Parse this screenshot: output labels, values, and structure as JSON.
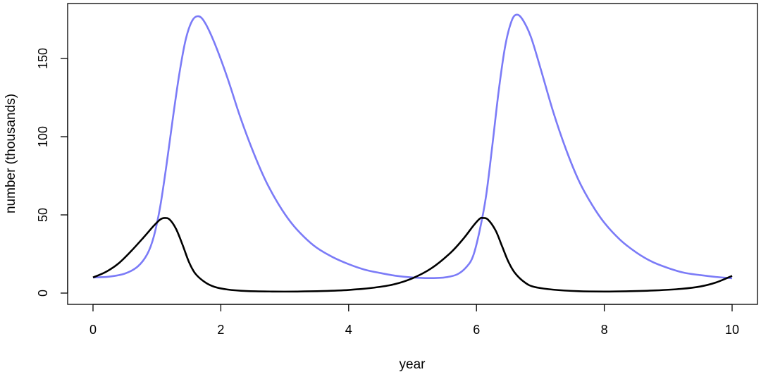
{
  "chart_data": {
    "type": "line",
    "title": "",
    "xlabel": "year",
    "ylabel": "number (thousands)",
    "xlim": [
      0,
      10
    ],
    "ylim": [
      0,
      175
    ],
    "x_ticks": [
      0,
      2,
      4,
      6,
      8,
      10
    ],
    "y_ticks": [
      0,
      50,
      100,
      150
    ],
    "grid": false,
    "legend": "none",
    "series": [
      {
        "color": "#7B7BF7",
        "points": [
          [
            0,
            10
          ],
          [
            0.25,
            10.5
          ],
          [
            0.5,
            12.5
          ],
          [
            0.7,
            17
          ],
          [
            0.85,
            25
          ],
          [
            0.95,
            36
          ],
          [
            1.05,
            55
          ],
          [
            1.15,
            82
          ],
          [
            1.25,
            112
          ],
          [
            1.35,
            140
          ],
          [
            1.45,
            162
          ],
          [
            1.55,
            174
          ],
          [
            1.65,
            177
          ],
          [
            1.75,
            173
          ],
          [
            1.9,
            160
          ],
          [
            2.1,
            138
          ],
          [
            2.3,
            113
          ],
          [
            2.5,
            91
          ],
          [
            2.7,
            72
          ],
          [
            2.9,
            57
          ],
          [
            3.1,
            45
          ],
          [
            3.3,
            36
          ],
          [
            3.5,
            29
          ],
          [
            3.75,
            23
          ],
          [
            4.0,
            18.5
          ],
          [
            4.25,
            15
          ],
          [
            4.5,
            12.8
          ],
          [
            4.75,
            11
          ],
          [
            5.0,
            10
          ],
          [
            5.25,
            9.6
          ],
          [
            5.5,
            10
          ],
          [
            5.7,
            12
          ],
          [
            5.85,
            17
          ],
          [
            5.95,
            24
          ],
          [
            6.05,
            40
          ],
          [
            6.15,
            62
          ],
          [
            6.25,
            95
          ],
          [
            6.35,
            130
          ],
          [
            6.45,
            158
          ],
          [
            6.55,
            174
          ],
          [
            6.63,
            178
          ],
          [
            6.72,
            175
          ],
          [
            6.85,
            164
          ],
          [
            7.0,
            144
          ],
          [
            7.2,
            116
          ],
          [
            7.4,
            92
          ],
          [
            7.6,
            72
          ],
          [
            7.8,
            57
          ],
          [
            8.0,
            45
          ],
          [
            8.25,
            34
          ],
          [
            8.5,
            26
          ],
          [
            8.75,
            20
          ],
          [
            9.0,
            16
          ],
          [
            9.25,
            13
          ],
          [
            9.5,
            11.5
          ],
          [
            9.75,
            10.3
          ],
          [
            10.0,
            9.5
          ]
        ]
      },
      {
        "color": "#000000",
        "points": [
          [
            0,
            10
          ],
          [
            0.2,
            13.5
          ],
          [
            0.4,
            19
          ],
          [
            0.6,
            27
          ],
          [
            0.8,
            36
          ],
          [
            0.95,
            43
          ],
          [
            1.05,
            47
          ],
          [
            1.12,
            48
          ],
          [
            1.2,
            47
          ],
          [
            1.3,
            41
          ],
          [
            1.4,
            31
          ],
          [
            1.5,
            20
          ],
          [
            1.6,
            12.5
          ],
          [
            1.75,
            7
          ],
          [
            1.9,
            4
          ],
          [
            2.1,
            2.3
          ],
          [
            2.4,
            1.3
          ],
          [
            2.8,
            1.0
          ],
          [
            3.2,
            1.0
          ],
          [
            3.6,
            1.3
          ],
          [
            4.0,
            2.0
          ],
          [
            4.4,
            3.5
          ],
          [
            4.7,
            5.5
          ],
          [
            5.0,
            9.5
          ],
          [
            5.3,
            16
          ],
          [
            5.6,
            26
          ],
          [
            5.8,
            35
          ],
          [
            5.95,
            43
          ],
          [
            6.05,
            47.5
          ],
          [
            6.1,
            48
          ],
          [
            6.18,
            47
          ],
          [
            6.3,
            40
          ],
          [
            6.4,
            30
          ],
          [
            6.5,
            20
          ],
          [
            6.6,
            13
          ],
          [
            6.75,
            7
          ],
          [
            6.9,
            4
          ],
          [
            7.2,
            2.2
          ],
          [
            7.6,
            1.2
          ],
          [
            8.0,
            1.0
          ],
          [
            8.4,
            1.2
          ],
          [
            8.8,
            1.7
          ],
          [
            9.2,
            2.7
          ],
          [
            9.5,
            4.2
          ],
          [
            9.75,
            6.8
          ],
          [
            10.0,
            11
          ]
        ]
      }
    ]
  }
}
